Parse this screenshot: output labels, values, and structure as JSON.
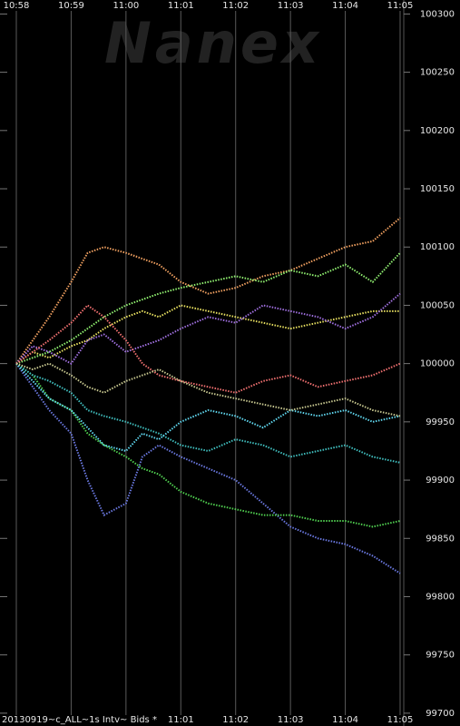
{
  "chart_data": {
    "type": "line",
    "watermark": "Nanex",
    "footer": "20130919~c_ALL~1s Intv~ Bids *",
    "xlim": [
      58,
      65
    ],
    "xticks": [
      {
        "value": 58,
        "label": "10:58"
      },
      {
        "value": 59,
        "label": "10:59"
      },
      {
        "value": 60,
        "label": "11:00"
      },
      {
        "value": 61,
        "label": "11:01"
      },
      {
        "value": 62,
        "label": "11:02"
      },
      {
        "value": 63,
        "label": "11:03"
      },
      {
        "value": 64,
        "label": "11:04"
      },
      {
        "value": 65,
        "label": "11:05"
      }
    ],
    "ylim": [
      99689,
      100312
    ],
    "yticks": [
      99700,
      99750,
      99800,
      99850,
      99900,
      99950,
      100000,
      100050,
      100100,
      100150,
      100200,
      100250,
      100300
    ],
    "grid": true,
    "x": [
      58,
      58.3,
      58.6,
      59,
      59.3,
      59.6,
      60,
      60.3,
      60.6,
      61,
      61.5,
      62,
      62.5,
      63,
      63.5,
      64,
      64.5,
      65
    ],
    "series": [
      {
        "color": "#f0a060",
        "values": [
          100000,
          100020,
          100040,
          100070,
          100095,
          100100,
          100095,
          100090,
          100085,
          100070,
          100060,
          100065,
          100075,
          100080,
          100090,
          100100,
          100105,
          100125
        ]
      },
      {
        "color": "#6a78e0",
        "values": [
          100000,
          99980,
          99960,
          99940,
          99900,
          99870,
          99880,
          99920,
          99930,
          99920,
          99910,
          99900,
          99880,
          99860,
          99850,
          99845,
          99835,
          99820
        ]
      },
      {
        "color": "#50d050",
        "values": [
          100000,
          99990,
          99970,
          99960,
          99940,
          99930,
          99920,
          99910,
          99905,
          99890,
          99880,
          99875,
          99870,
          99870,
          99865,
          99865,
          99860,
          99865
        ]
      },
      {
        "color": "#e8e060",
        "values": [
          100000,
          100010,
          100005,
          100015,
          100020,
          100030,
          100040,
          100045,
          100040,
          100050,
          100045,
          100040,
          100035,
          100030,
          100035,
          100040,
          100045,
          100045
        ]
      },
      {
        "color": "#40c0c0",
        "values": [
          100000,
          99990,
          99985,
          99975,
          99960,
          99955,
          99950,
          99945,
          99940,
          99930,
          99925,
          99935,
          99930,
          99920,
          99925,
          99930,
          99920,
          99915
        ]
      },
      {
        "color": "#90f070",
        "values": [
          100000,
          100005,
          100010,
          100020,
          100030,
          100040,
          100050,
          100055,
          100060,
          100065,
          100070,
          100075,
          100070,
          100080,
          100075,
          100085,
          100070,
          100095
        ]
      },
      {
        "color": "#a070e0",
        "values": [
          100000,
          100015,
          100010,
          100000,
          100020,
          100025,
          100010,
          100015,
          100020,
          100030,
          100040,
          100035,
          100050,
          100045,
          100040,
          100030,
          100040,
          100060
        ]
      },
      {
        "color": "#60d8f0",
        "values": [
          100000,
          99985,
          99970,
          99960,
          99945,
          99930,
          99925,
          99940,
          99935,
          99950,
          99960,
          99955,
          99945,
          99960,
          99955,
          99960,
          99950,
          99955
        ]
      },
      {
        "color": "#f07070",
        "values": [
          100000,
          100010,
          100020,
          100035,
          100050,
          100040,
          100020,
          100000,
          99990,
          99985,
          99980,
          99975,
          99985,
          99990,
          99980,
          99985,
          99990,
          100000
        ]
      },
      {
        "color": "#c8c890",
        "values": [
          100000,
          99995,
          100000,
          99990,
          99980,
          99975,
          99985,
          99990,
          99995,
          99985,
          99975,
          99970,
          99965,
          99960,
          99965,
          99970,
          99960,
          99955
        ]
      }
    ]
  }
}
